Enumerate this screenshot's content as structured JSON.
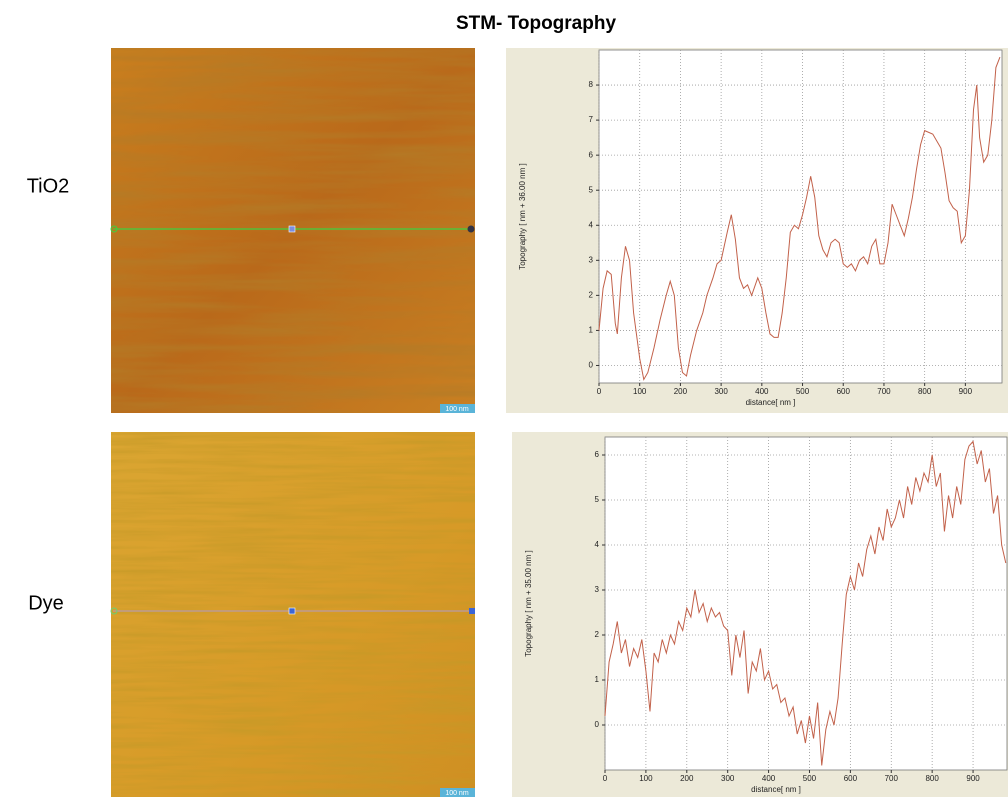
{
  "figure": {
    "title": "STM- Topography",
    "row_labels": [
      "TiO2",
      "Dye"
    ],
    "scale_labels": [
      "100 nm",
      "100 nm"
    ]
  },
  "chart_data": [
    {
      "type": "line",
      "xlabel": "distance[ nm ]",
      "ylabel": "Topography [ nm + 36.00 nm ]",
      "xlim": [
        0,
        990
      ],
      "ylim": [
        -0.5,
        9.0
      ],
      "xticks": [
        0,
        100,
        200,
        300,
        400,
        500,
        600,
        700,
        800,
        900
      ],
      "yticks": [
        0,
        1,
        2,
        3,
        4,
        5,
        6,
        7,
        8
      ],
      "grid": true,
      "x": [
        0,
        10,
        20,
        30,
        40,
        45,
        55,
        65,
        75,
        85,
        100,
        110,
        120,
        135,
        150,
        165,
        175,
        185,
        195,
        205,
        215,
        225,
        240,
        255,
        265,
        280,
        290,
        300,
        315,
        325,
        335,
        345,
        355,
        365,
        375,
        390,
        400,
        410,
        420,
        430,
        440,
        450,
        460,
        470,
        480,
        490,
        500,
        510,
        520,
        530,
        540,
        550,
        560,
        570,
        580,
        590,
        600,
        610,
        620,
        630,
        640,
        650,
        660,
        670,
        680,
        690,
        700,
        710,
        720,
        730,
        740,
        750,
        760,
        770,
        780,
        790,
        800,
        820,
        840,
        850,
        860,
        870,
        880,
        890,
        900,
        910,
        920,
        928,
        935,
        945,
        955,
        965,
        975,
        985
      ],
      "series": [
        {
          "color": "#c2614a",
          "values": [
            1.0,
            2.2,
            2.7,
            2.6,
            1.2,
            0.9,
            2.5,
            3.4,
            3.0,
            1.5,
            0.2,
            -0.4,
            -0.2,
            0.5,
            1.3,
            2.0,
            2.4,
            2.0,
            0.5,
            -0.2,
            -0.3,
            0.3,
            1.0,
            1.5,
            2.0,
            2.5,
            2.9,
            3.0,
            3.8,
            4.3,
            3.6,
            2.5,
            2.2,
            2.3,
            2.0,
            2.5,
            2.2,
            1.5,
            0.9,
            0.8,
            0.8,
            1.5,
            2.5,
            3.8,
            4.0,
            3.9,
            4.3,
            4.8,
            5.4,
            4.8,
            3.7,
            3.3,
            3.1,
            3.5,
            3.6,
            3.5,
            2.9,
            2.8,
            2.9,
            2.7,
            3.0,
            3.1,
            2.9,
            3.4,
            3.6,
            2.9,
            2.9,
            3.5,
            4.6,
            4.3,
            4.0,
            3.7,
            4.2,
            4.8,
            5.6,
            6.3,
            6.7,
            6.6,
            6.2,
            5.5,
            4.7,
            4.5,
            4.4,
            3.5,
            3.7,
            5.0,
            7.3,
            8.0,
            6.5,
            5.8,
            6.0,
            7.0,
            8.5,
            8.8
          ]
        }
      ]
    },
    {
      "type": "line",
      "xlabel": "distance[ nm ]",
      "ylabel": "Topography [ nm + 35.00 nm ]",
      "xlim": [
        0,
        983
      ],
      "ylim": [
        -1.0,
        6.4
      ],
      "xticks": [
        0,
        100,
        200,
        300,
        400,
        500,
        600,
        700,
        800,
        900
      ],
      "yticks": [
        0,
        1,
        2,
        3,
        4,
        5,
        6
      ],
      "grid": true,
      "x": [
        0,
        10,
        20,
        30,
        40,
        50,
        60,
        70,
        80,
        90,
        100,
        110,
        120,
        130,
        140,
        150,
        160,
        170,
        180,
        190,
        200,
        210,
        220,
        230,
        240,
        250,
        260,
        270,
        280,
        290,
        300,
        310,
        320,
        330,
        340,
        350,
        360,
        370,
        380,
        390,
        400,
        410,
        420,
        430,
        440,
        450,
        460,
        470,
        480,
        490,
        500,
        510,
        520,
        530,
        540,
        550,
        560,
        570,
        580,
        590,
        600,
        610,
        620,
        630,
        640,
        650,
        660,
        670,
        680,
        690,
        700,
        710,
        720,
        730,
        740,
        750,
        760,
        770,
        780,
        790,
        800,
        810,
        820,
        830,
        840,
        850,
        860,
        870,
        880,
        890,
        900,
        910,
        920,
        930,
        940,
        950,
        960,
        970,
        980
      ],
      "series": [
        {
          "color": "#c2614a",
          "values": [
            0.2,
            1.4,
            1.8,
            2.3,
            1.6,
            1.9,
            1.3,
            1.7,
            1.5,
            1.9,
            1.2,
            0.3,
            1.6,
            1.4,
            1.9,
            1.6,
            2.0,
            1.8,
            2.3,
            2.1,
            2.6,
            2.4,
            3.0,
            2.5,
            2.7,
            2.3,
            2.6,
            2.4,
            2.5,
            2.2,
            2.1,
            1.1,
            2.0,
            1.5,
            2.1,
            0.7,
            1.4,
            1.2,
            1.7,
            1.0,
            1.2,
            0.8,
            0.9,
            0.5,
            0.6,
            0.2,
            0.4,
            -0.2,
            0.1,
            -0.4,
            0.2,
            -0.3,
            0.5,
            -0.9,
            -0.1,
            0.3,
            0.0,
            0.6,
            1.8,
            2.9,
            3.3,
            3.0,
            3.6,
            3.3,
            3.9,
            4.2,
            3.8,
            4.4,
            4.1,
            4.8,
            4.4,
            4.6,
            5.0,
            4.6,
            5.3,
            4.9,
            5.5,
            5.2,
            5.6,
            5.4,
            6.0,
            5.3,
            5.6,
            4.3,
            5.1,
            4.6,
            5.3,
            4.9,
            5.9,
            6.2,
            6.3,
            5.8,
            6.1,
            5.4,
            5.7,
            4.7,
            5.1,
            4.0,
            3.6
          ]
        }
      ]
    }
  ]
}
